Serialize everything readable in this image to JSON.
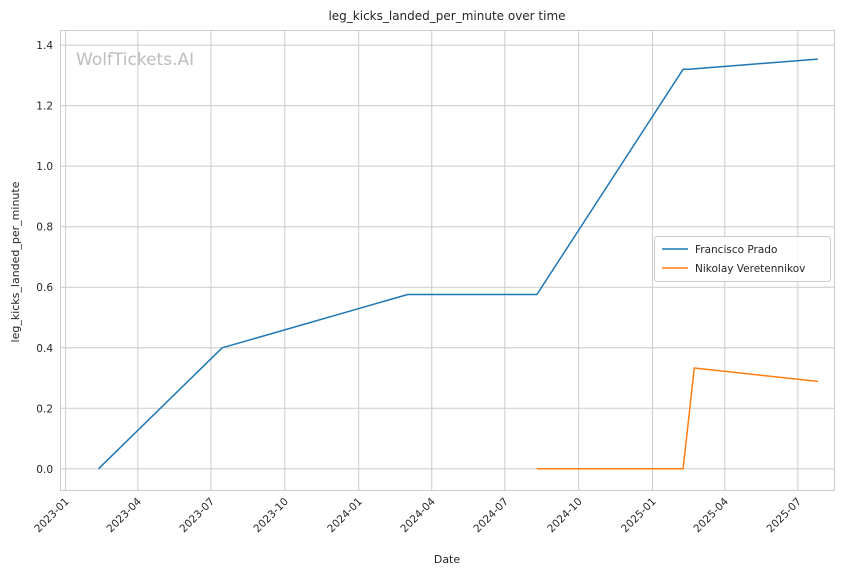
{
  "chart_data": {
    "type": "line",
    "title": "leg_kicks_landed_per_minute over time",
    "xlabel": "Date",
    "ylabel": "leg_kicks_landed_per_minute",
    "watermark": "WolfTickets.AI",
    "x_ticks": [
      "2023-01",
      "2023-04",
      "2023-07",
      "2023-10",
      "2024-01",
      "2024-04",
      "2024-07",
      "2024-10",
      "2025-01",
      "2025-04",
      "2025-07"
    ],
    "y_ticks": [
      "0.0",
      "0.2",
      "0.4",
      "0.6",
      "0.8",
      "1.0",
      "1.2",
      "1.4"
    ],
    "xlim": [
      "2022-12-25",
      "2025-08-15"
    ],
    "ylim": [
      -0.07,
      1.45
    ],
    "grid": true,
    "legend_position": "center-right",
    "series": [
      {
        "name": "Francisco Prado",
        "color": "#1f77b4",
        "points": [
          {
            "x": "2023-02-11",
            "y": 0.0
          },
          {
            "x": "2023-07-15",
            "y": 0.4
          },
          {
            "x": "2024-03-02",
            "y": 0.576
          },
          {
            "x": "2024-08-10",
            "y": 0.576
          },
          {
            "x": "2025-02-08",
            "y": 1.32
          },
          {
            "x": "2025-02-15",
            "y": 1.32
          },
          {
            "x": "2025-07-26",
            "y": 1.354
          }
        ]
      },
      {
        "name": "Nikolay Veretennikov",
        "color": "#ff7f0e",
        "points": [
          {
            "x": "2024-08-10",
            "y": 0.0
          },
          {
            "x": "2025-02-08",
            "y": 0.0
          },
          {
            "x": "2025-02-22",
            "y": 0.333
          },
          {
            "x": "2025-07-26",
            "y": 0.289
          }
        ]
      }
    ]
  }
}
